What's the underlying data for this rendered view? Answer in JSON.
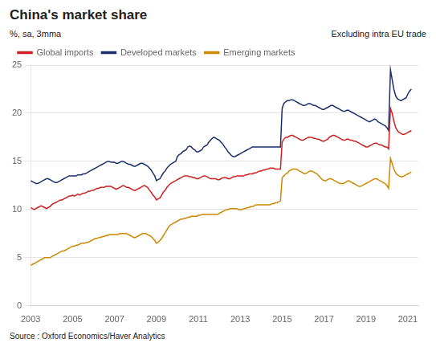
{
  "chart_data": {
    "type": "line",
    "title": "China's market share",
    "subtitle": "%, sa, 3mma",
    "annotations": [
      "Excluding intra EU trade"
    ],
    "source": "Source : Oxford Economics/Haver Analytics",
    "xlim": [
      2003,
      2021.5
    ],
    "ylim": [
      0,
      25
    ],
    "xticks": [
      2003,
      2005,
      2007,
      2009,
      2011,
      2013,
      2015,
      2017,
      2019,
      2021
    ],
    "yticks": [
      0,
      5,
      10,
      15,
      20,
      25
    ],
    "grid": true,
    "legend": "upper left",
    "x": [
      2003.0,
      2003.08,
      2003.17,
      2003.25,
      2003.33,
      2003.42,
      2003.5,
      2003.58,
      2003.67,
      2003.75,
      2003.83,
      2003.92,
      2004.0,
      2004.08,
      2004.17,
      2004.25,
      2004.33,
      2004.42,
      2004.5,
      2004.58,
      2004.67,
      2004.75,
      2004.83,
      2004.92,
      2005.0,
      2005.08,
      2005.17,
      2005.25,
      2005.33,
      2005.42,
      2005.5,
      2005.58,
      2005.67,
      2005.75,
      2005.83,
      2005.92,
      2006.0,
      2006.08,
      2006.17,
      2006.25,
      2006.33,
      2006.42,
      2006.5,
      2006.58,
      2006.67,
      2006.75,
      2006.83,
      2006.92,
      2007.0,
      2007.08,
      2007.17,
      2007.25,
      2007.33,
      2007.42,
      2007.5,
      2007.58,
      2007.67,
      2007.75,
      2007.83,
      2007.92,
      2008.0,
      2008.08,
      2008.17,
      2008.25,
      2008.33,
      2008.42,
      2008.5,
      2008.58,
      2008.67,
      2008.75,
      2008.83,
      2008.92,
      2009.0,
      2009.08,
      2009.17,
      2009.25,
      2009.33,
      2009.42,
      2009.5,
      2009.58,
      2009.67,
      2009.75,
      2009.83,
      2009.92,
      2010.0,
      2010.08,
      2010.17,
      2010.25,
      2010.33,
      2010.42,
      2010.5,
      2010.58,
      2010.67,
      2010.75,
      2010.83,
      2010.92,
      2011.0,
      2011.08,
      2011.17,
      2011.25,
      2011.33,
      2011.42,
      2011.5,
      2011.58,
      2011.67,
      2011.75,
      2011.83,
      2011.92,
      2012.0,
      2012.08,
      2012.17,
      2012.25,
      2012.33,
      2012.42,
      2012.5,
      2012.58,
      2012.67,
      2012.75,
      2012.83,
      2012.92,
      2013.0,
      2013.08,
      2013.17,
      2013.25,
      2013.33,
      2013.42,
      2013.5,
      2013.58,
      2013.67,
      2013.75,
      2013.83,
      2013.92,
      2014.0,
      2014.08,
      2014.17,
      2014.25,
      2014.33,
      2014.42,
      2014.5,
      2014.58,
      2014.67,
      2014.75,
      2014.83,
      2014.92,
      2015.0,
      2015.08,
      2015.17,
      2015.25,
      2015.33,
      2015.42,
      2015.5,
      2015.58,
      2015.67,
      2015.75,
      2015.83,
      2015.92,
      2016.0,
      2016.08,
      2016.17,
      2016.25,
      2016.33,
      2016.42,
      2016.5,
      2016.58,
      2016.67,
      2016.75,
      2016.83,
      2016.92,
      2017.0,
      2017.08,
      2017.17,
      2017.25,
      2017.33,
      2017.42,
      2017.5,
      2017.58,
      2017.67,
      2017.75,
      2017.83,
      2017.92,
      2018.0,
      2018.08,
      2018.17,
      2018.25,
      2018.33,
      2018.42,
      2018.5,
      2018.58,
      2018.67,
      2018.75,
      2018.83,
      2018.92,
      2019.0,
      2019.08,
      2019.17,
      2019.25,
      2019.33,
      2019.42,
      2019.5,
      2019.58,
      2019.67,
      2019.75,
      2019.83,
      2019.92,
      2020.0,
      2020.08,
      2020.17,
      2020.25,
      2020.33,
      2020.42,
      2020.5,
      2020.58,
      2020.67,
      2020.75,
      2020.83,
      2020.92,
      2021.0,
      2021.08,
      2021.17
    ],
    "series": [
      {
        "name": "Global imports",
        "color": "#cc2222",
        "values": [
          10.2,
          10.1,
          10.0,
          10.1,
          10.2,
          10.3,
          10.4,
          10.3,
          10.2,
          10.1,
          10.2,
          10.3,
          10.5,
          10.6,
          10.7,
          10.8,
          10.9,
          11.0,
          11.0,
          11.1,
          11.2,
          11.3,
          11.4,
          11.4,
          11.5,
          11.4,
          11.5,
          11.6,
          11.5,
          11.6,
          11.7,
          11.7,
          11.8,
          11.9,
          11.9,
          12.0,
          12.0,
          12.1,
          12.2,
          12.2,
          12.3,
          12.3,
          12.3,
          12.4,
          12.4,
          12.4,
          12.4,
          12.3,
          12.2,
          12.1,
          12.2,
          12.3,
          12.4,
          12.5,
          12.4,
          12.3,
          12.3,
          12.2,
          12.1,
          12.0,
          12.0,
          12.1,
          12.2,
          12.3,
          12.4,
          12.5,
          12.4,
          12.3,
          12.0,
          11.8,
          11.5,
          11.3,
          11.0,
          11.1,
          11.2,
          11.5,
          11.8,
          12.0,
          12.3,
          12.5,
          12.7,
          12.8,
          12.9,
          13.0,
          13.1,
          13.2,
          13.3,
          13.4,
          13.5,
          13.5,
          13.5,
          13.4,
          13.4,
          13.3,
          13.3,
          13.2,
          13.2,
          13.3,
          13.4,
          13.5,
          13.5,
          13.4,
          13.3,
          13.2,
          13.2,
          13.2,
          13.2,
          13.1,
          13.1,
          13.2,
          13.3,
          13.3,
          13.3,
          13.2,
          13.2,
          13.3,
          13.4,
          13.4,
          13.5,
          13.5,
          13.5,
          13.5,
          13.5,
          13.6,
          13.6,
          13.7,
          13.7,
          13.7,
          13.8,
          13.8,
          13.9,
          14.0,
          14.0,
          14.1,
          14.1,
          14.2,
          14.2,
          14.3,
          14.3,
          14.3,
          14.2,
          14.2,
          14.2,
          14.2,
          17.0,
          17.3,
          17.5,
          17.5,
          17.6,
          17.7,
          17.7,
          17.6,
          17.5,
          17.4,
          17.3,
          17.2,
          17.2,
          17.3,
          17.4,
          17.5,
          17.5,
          17.5,
          17.4,
          17.4,
          17.3,
          17.3,
          17.2,
          17.1,
          17.1,
          17.2,
          17.3,
          17.5,
          17.6,
          17.7,
          17.7,
          17.6,
          17.5,
          17.4,
          17.3,
          17.2,
          17.2,
          17.3,
          17.3,
          17.2,
          17.2,
          17.1,
          17.1,
          17.0,
          16.9,
          16.8,
          16.7,
          16.6,
          16.5,
          16.5,
          16.6,
          16.7,
          16.8,
          16.9,
          16.9,
          16.8,
          16.7,
          16.7,
          16.6,
          16.5,
          16.5,
          16.3,
          20.5,
          20.0,
          19.2,
          18.5,
          18.2,
          18.0,
          17.9,
          17.8,
          17.8,
          17.9,
          18.0,
          18.1,
          18.2
        ]
      },
      {
        "name": "Developed markets",
        "color": "#1a2e6b",
        "values": [
          13.0,
          12.9,
          12.8,
          12.7,
          12.7,
          12.8,
          12.9,
          13.0,
          13.1,
          13.2,
          13.2,
          13.1,
          13.0,
          12.9,
          12.8,
          12.8,
          12.9,
          13.0,
          13.1,
          13.2,
          13.3,
          13.4,
          13.5,
          13.5,
          13.5,
          13.5,
          13.5,
          13.6,
          13.6,
          13.6,
          13.7,
          13.7,
          13.8,
          13.9,
          14.0,
          14.1,
          14.2,
          14.3,
          14.4,
          14.5,
          14.6,
          14.7,
          14.8,
          14.9,
          15.0,
          15.0,
          14.9,
          14.9,
          14.9,
          14.8,
          14.8,
          14.9,
          15.0,
          15.0,
          14.9,
          14.8,
          14.7,
          14.7,
          14.6,
          14.5,
          14.5,
          14.6,
          14.7,
          14.8,
          14.8,
          14.7,
          14.6,
          14.5,
          14.3,
          14.1,
          13.8,
          13.5,
          13.0,
          13.1,
          13.2,
          13.5,
          13.8,
          14.0,
          14.3,
          14.5,
          14.7,
          14.8,
          14.9,
          15.0,
          15.5,
          15.7,
          15.8,
          16.0,
          16.1,
          16.2,
          16.5,
          16.6,
          16.5,
          16.3,
          16.2,
          16.0,
          16.0,
          16.1,
          16.2,
          16.5,
          16.6,
          16.7,
          17.0,
          17.2,
          17.4,
          17.5,
          17.4,
          17.3,
          17.2,
          17.0,
          16.8,
          16.5,
          16.3,
          16.0,
          15.8,
          15.6,
          15.5,
          15.5,
          15.6,
          15.7,
          15.8,
          15.9,
          16.0,
          16.1,
          16.2,
          16.3,
          16.4,
          16.5,
          16.5,
          16.5,
          16.5,
          16.5,
          16.5,
          16.5,
          16.5,
          16.5,
          16.5,
          16.5,
          16.5,
          16.5,
          16.5,
          16.5,
          16.5,
          16.5,
          20.5,
          21.0,
          21.2,
          21.3,
          21.3,
          21.4,
          21.4,
          21.3,
          21.2,
          21.1,
          21.0,
          20.9,
          20.8,
          20.8,
          20.9,
          21.0,
          21.0,
          20.9,
          20.8,
          20.8,
          20.7,
          20.6,
          20.5,
          20.4,
          20.4,
          20.5,
          20.6,
          20.7,
          20.8,
          20.8,
          20.7,
          20.6,
          20.5,
          20.4,
          20.3,
          20.2,
          20.2,
          20.3,
          20.3,
          20.2,
          20.1,
          20.0,
          19.9,
          19.8,
          19.7,
          19.6,
          19.5,
          19.4,
          19.3,
          19.2,
          19.1,
          19.2,
          19.3,
          19.4,
          19.3,
          19.1,
          19.0,
          18.9,
          18.8,
          18.7,
          18.5,
          18.2,
          24.5,
          23.5,
          22.5,
          21.8,
          21.5,
          21.4,
          21.3,
          21.4,
          21.5,
          21.6,
          22.0,
          22.3,
          22.5
        ]
      },
      {
        "name": "Emerging markets",
        "color": "#cc8800",
        "values": [
          4.2,
          4.3,
          4.4,
          4.5,
          4.6,
          4.7,
          4.8,
          4.9,
          5.0,
          5.0,
          5.0,
          5.0,
          5.1,
          5.2,
          5.3,
          5.4,
          5.5,
          5.6,
          5.7,
          5.7,
          5.8,
          5.9,
          6.0,
          6.1,
          6.2,
          6.2,
          6.3,
          6.3,
          6.4,
          6.5,
          6.5,
          6.5,
          6.6,
          6.6,
          6.7,
          6.8,
          6.9,
          7.0,
          7.0,
          7.1,
          7.1,
          7.2,
          7.2,
          7.3,
          7.3,
          7.4,
          7.4,
          7.4,
          7.4,
          7.4,
          7.4,
          7.5,
          7.5,
          7.5,
          7.5,
          7.5,
          7.4,
          7.3,
          7.2,
          7.1,
          7.1,
          7.2,
          7.3,
          7.4,
          7.5,
          7.5,
          7.5,
          7.4,
          7.3,
          7.2,
          7.0,
          6.8,
          6.5,
          6.6,
          6.8,
          7.0,
          7.3,
          7.6,
          7.9,
          8.2,
          8.4,
          8.5,
          8.6,
          8.7,
          8.8,
          8.9,
          9.0,
          9.0,
          9.1,
          9.1,
          9.2,
          9.2,
          9.3,
          9.3,
          9.3,
          9.3,
          9.4,
          9.4,
          9.5,
          9.5,
          9.5,
          9.5,
          9.5,
          9.5,
          9.5,
          9.5,
          9.5,
          9.5,
          9.6,
          9.7,
          9.8,
          9.9,
          10.0,
          10.0,
          10.1,
          10.1,
          10.1,
          10.1,
          10.1,
          10.0,
          10.0,
          10.0,
          10.1,
          10.1,
          10.2,
          10.2,
          10.3,
          10.3,
          10.4,
          10.5,
          10.5,
          10.5,
          10.5,
          10.5,
          10.5,
          10.5,
          10.5,
          10.5,
          10.6,
          10.6,
          10.7,
          10.7,
          10.8,
          10.9,
          13.3,
          13.5,
          13.7,
          13.8,
          14.0,
          14.1,
          14.2,
          14.2,
          14.2,
          14.1,
          14.0,
          13.9,
          13.8,
          13.7,
          13.8,
          13.9,
          14.0,
          14.0,
          13.9,
          13.8,
          13.7,
          13.5,
          13.3,
          13.1,
          13.0,
          13.0,
          13.1,
          13.2,
          13.2,
          13.1,
          13.0,
          12.9,
          12.8,
          12.7,
          12.7,
          12.7,
          12.8,
          12.9,
          13.0,
          12.9,
          12.8,
          12.7,
          12.6,
          12.5,
          12.4,
          12.4,
          12.5,
          12.6,
          12.7,
          12.8,
          12.9,
          13.0,
          13.1,
          13.2,
          13.2,
          13.1,
          13.0,
          12.9,
          12.8,
          12.7,
          12.5,
          12.2,
          15.3,
          14.8,
          14.2,
          13.8,
          13.6,
          13.5,
          13.4,
          13.4,
          13.5,
          13.6,
          13.7,
          13.8,
          13.9
        ]
      }
    ]
  }
}
